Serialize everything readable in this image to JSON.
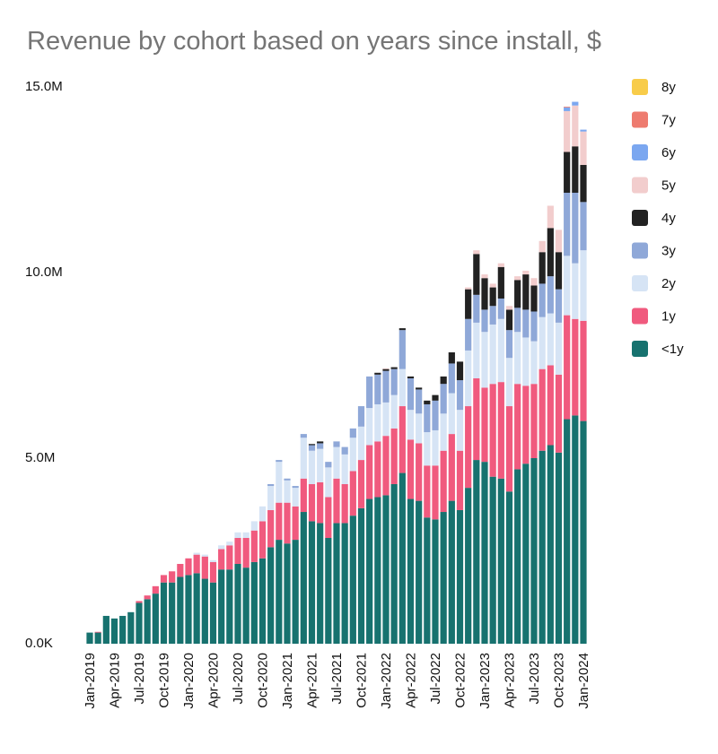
{
  "chart_data": {
    "type": "stacked_bar",
    "title": "Revenue by cohort based on years since install, $",
    "categories": [
      "Jan-2019",
      null,
      null,
      "Apr-2019",
      null,
      null,
      "Jul-2019",
      null,
      null,
      "Oct-2019",
      null,
      null,
      "Jan-2020",
      null,
      null,
      "Apr-2020",
      null,
      null,
      "Jul-2020",
      null,
      null,
      "Oct-2020",
      null,
      null,
      "Jan-2021",
      null,
      null,
      "Apr-2021",
      null,
      null,
      "Jul-2021",
      null,
      null,
      "Oct-2021",
      null,
      null,
      "Jan-2022",
      null,
      null,
      "Apr-2022",
      null,
      null,
      "Jul-2022",
      null,
      null,
      "Oct-2022",
      null,
      null,
      "Jan-2023",
      null,
      null,
      "Apr-2023",
      null,
      null,
      "Jul-2023",
      null,
      null,
      "Oct-2023",
      null,
      null,
      "Jan-2024"
    ],
    "series": [
      {
        "name": "<1y",
        "color": "#17726f",
        "values": [
          300000,
          300000,
          750000,
          680000,
          750000,
          850000,
          1100000,
          1200000,
          1350000,
          1650000,
          1650000,
          1800000,
          1850000,
          1900000,
          1750000,
          1650000,
          2000000,
          2000000,
          2150000,
          2050000,
          2200000,
          2300000,
          2600000,
          2800000,
          2700000,
          2800000,
          3550000,
          3300000,
          3250000,
          2850000,
          3250000,
          3250000,
          3450000,
          3650000,
          3900000,
          3950000,
          4000000,
          4300000,
          4600000,
          3900000,
          3850000,
          3400000,
          3350000,
          3550000,
          3850000,
          3600000,
          4200000,
          4950000,
          4900000,
          4500000,
          4450000,
          4100000,
          4700000,
          4850000,
          5000000,
          5200000,
          5350000,
          5150000,
          6050000,
          6150000,
          6000000
        ]
      },
      {
        "name": "1y",
        "color": "#f05a7e",
        "values": [
          0,
          20000,
          0,
          0,
          0,
          0,
          50000,
          100000,
          200000,
          200000,
          300000,
          350000,
          450000,
          500000,
          600000,
          550000,
          550000,
          650000,
          700000,
          800000,
          850000,
          1000000,
          1000000,
          1000000,
          1100000,
          900000,
          900000,
          1000000,
          1100000,
          1100000,
          1200000,
          1050000,
          1200000,
          1300000,
          1450000,
          1500000,
          1600000,
          1500000,
          1800000,
          1600000,
          1550000,
          1400000,
          1450000,
          1650000,
          1800000,
          1600000,
          2200000,
          2200000,
          2000000,
          2500000,
          2600000,
          2300000,
          2300000,
          2100000,
          2000000,
          2200000,
          2150000,
          2100000,
          2800000,
          2600000,
          2700000
        ]
      },
      {
        "name": "2y",
        "color": "#d6e4f5",
        "values": [
          0,
          0,
          0,
          0,
          0,
          0,
          0,
          0,
          0,
          0,
          0,
          0,
          0,
          50000,
          50000,
          50000,
          100000,
          100000,
          150000,
          150000,
          250000,
          400000,
          650000,
          1100000,
          600000,
          500000,
          1100000,
          900000,
          900000,
          800000,
          850000,
          800000,
          900000,
          900000,
          1000000,
          1000000,
          900000,
          900000,
          1000000,
          800000,
          800000,
          900000,
          950000,
          1000000,
          1100000,
          1100000,
          1500000,
          1500000,
          1500000,
          1600000,
          1700000,
          1300000,
          1400000,
          1300000,
          1150000,
          1400000,
          1400000,
          1400000,
          1600000,
          1500000,
          1900000
        ]
      },
      {
        "name": "3y",
        "color": "#8fa8d8",
        "values": [
          0,
          0,
          0,
          0,
          0,
          0,
          0,
          0,
          0,
          0,
          0,
          0,
          0,
          0,
          0,
          0,
          0,
          0,
          0,
          0,
          0,
          0,
          50000,
          50000,
          50000,
          50000,
          100000,
          150000,
          150000,
          150000,
          150000,
          200000,
          250000,
          550000,
          850000,
          800000,
          850000,
          700000,
          1050000,
          850000,
          650000,
          750000,
          800000,
          800000,
          800000,
          800000,
          850000,
          750000,
          600000,
          500000,
          550000,
          750000,
          650000,
          750000,
          800000,
          900000,
          1000000,
          900000,
          1700000,
          1900000,
          1300000
        ]
      },
      {
        "name": "4y",
        "color": "#222222",
        "values": [
          0,
          0,
          0,
          0,
          0,
          0,
          0,
          0,
          0,
          0,
          0,
          0,
          0,
          0,
          0,
          0,
          0,
          0,
          0,
          0,
          0,
          0,
          0,
          0,
          0,
          0,
          0,
          30000,
          50000,
          0,
          0,
          0,
          0,
          0,
          0,
          50000,
          50000,
          50000,
          50000,
          50000,
          50000,
          100000,
          150000,
          200000,
          300000,
          500000,
          800000,
          1100000,
          850000,
          500000,
          850000,
          550000,
          750000,
          950000,
          700000,
          850000,
          1300000,
          1000000,
          1100000,
          1250000,
          1000000
        ]
      },
      {
        "name": "5y",
        "color": "#f2cdcd",
        "values": [
          0,
          0,
          0,
          0,
          0,
          0,
          0,
          0,
          0,
          0,
          0,
          0,
          0,
          0,
          0,
          0,
          0,
          0,
          0,
          0,
          0,
          0,
          0,
          0,
          0,
          0,
          0,
          0,
          0,
          0,
          0,
          0,
          0,
          0,
          0,
          0,
          20000,
          0,
          0,
          0,
          0,
          0,
          0,
          0,
          0,
          0,
          50000,
          100000,
          100000,
          100000,
          100000,
          100000,
          100000,
          100000,
          200000,
          300000,
          600000,
          600000,
          1100000,
          1100000,
          900000
        ]
      },
      {
        "name": "6y",
        "color": "#7ba7f0",
        "values": [
          0,
          0,
          0,
          0,
          0,
          0,
          0,
          0,
          0,
          0,
          0,
          0,
          0,
          0,
          0,
          0,
          0,
          0,
          0,
          0,
          0,
          0,
          0,
          0,
          0,
          0,
          0,
          0,
          0,
          0,
          0,
          0,
          0,
          0,
          0,
          0,
          0,
          0,
          0,
          0,
          0,
          0,
          0,
          0,
          0,
          0,
          0,
          0,
          0,
          0,
          0,
          0,
          0,
          0,
          0,
          0,
          0,
          0,
          100000,
          100000,
          50000
        ]
      },
      {
        "name": "7y",
        "color": "#ee7b6f",
        "values": [
          0,
          0,
          0,
          0,
          0,
          0,
          0,
          0,
          0,
          0,
          0,
          0,
          0,
          0,
          0,
          0,
          0,
          0,
          0,
          0,
          0,
          0,
          0,
          0,
          0,
          0,
          0,
          0,
          0,
          0,
          0,
          0,
          0,
          0,
          0,
          0,
          0,
          0,
          0,
          0,
          0,
          0,
          0,
          0,
          0,
          0,
          0,
          0,
          0,
          0,
          0,
          0,
          0,
          0,
          0,
          0,
          0,
          0,
          20000,
          0,
          0
        ]
      },
      {
        "name": "8y",
        "color": "#f8cc4a",
        "values": [
          0,
          0,
          0,
          0,
          0,
          0,
          0,
          0,
          0,
          0,
          0,
          0,
          0,
          0,
          0,
          0,
          0,
          0,
          0,
          0,
          0,
          0,
          0,
          0,
          0,
          0,
          0,
          0,
          0,
          0,
          0,
          0,
          0,
          0,
          0,
          0,
          0,
          0,
          0,
          0,
          0,
          0,
          0,
          0,
          0,
          0,
          0,
          0,
          0,
          0,
          0,
          0,
          0,
          0,
          0,
          0,
          0,
          0,
          0,
          0,
          0
        ]
      }
    ],
    "ylim": [
      0,
      15000000
    ],
    "yticks": [
      {
        "value": 0,
        "label": "0.0K"
      },
      {
        "value": 5000000,
        "label": "5.0M"
      },
      {
        "value": 10000000,
        "label": "10.0M"
      },
      {
        "value": 15000000,
        "label": "15.0M"
      }
    ],
    "grid": false,
    "legend": "right"
  }
}
